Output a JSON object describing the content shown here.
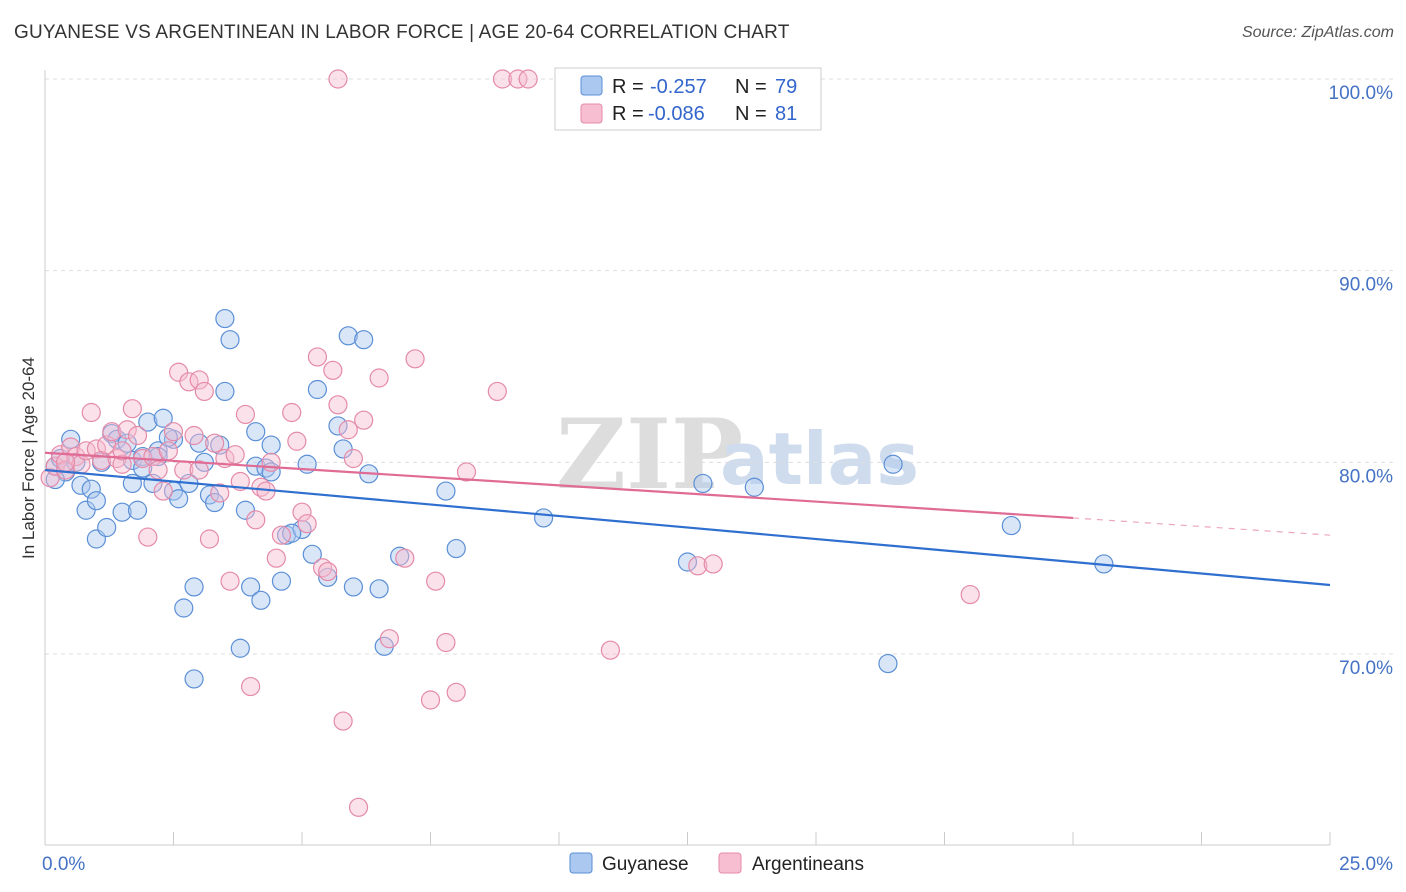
{
  "header": {
    "title": "GUYANESE VS ARGENTINEAN IN LABOR FORCE | AGE 20-64 CORRELATION CHART",
    "source": "Source: ZipAtlas.com"
  },
  "watermark": {
    "zip": "ZIP",
    "atlas": "atlas"
  },
  "colors": {
    "guyanese_fill": "#aac8f0",
    "guyanese_stroke": "#5b8fd6",
    "guyanese_line": "#2f6fcf",
    "argentinean_fill": "#f7bdd0",
    "argentinean_stroke": "#e48aa8",
    "argentinean_line": "#e06b94",
    "axis_text": "#4472c4",
    "grid": "#dddddd"
  },
  "legend": {
    "rows": [
      {
        "r_label": "R =",
        "r_value": "-0.257",
        "n_label": "N =",
        "n_value": "79"
      },
      {
        "r_label": "R =",
        "r_value": "-0.086",
        "n_label": "N =",
        "n_value": "81"
      }
    ]
  },
  "chart_data": {
    "type": "scatter",
    "title": "GUYANESE VS ARGENTINEAN IN LABOR FORCE | AGE 20-64 CORRELATION CHART",
    "xlabel": "",
    "ylabel": "In Labor Force | Age 20-64",
    "xlim": [
      0,
      25
    ],
    "ylim": [
      60,
      101
    ],
    "x_tick_labels": [
      "0.0%",
      "25.0%"
    ],
    "y_ticks": [
      70,
      80,
      90,
      100
    ],
    "y_tick_labels": [
      "70.0%",
      "80.0%",
      "90.0%",
      "100.0%"
    ],
    "series": [
      {
        "name": "Guyanese",
        "r": -0.257,
        "n": 79,
        "trend": {
          "x": [
            0,
            25
          ],
          "y": [
            79.6,
            73.6
          ]
        },
        "points": [
          [
            0.2,
            79.8
          ],
          [
            0.3,
            80.2
          ],
          [
            0.4,
            79.5
          ],
          [
            0.5,
            81.2
          ],
          [
            0.6,
            80.0
          ],
          [
            0.7,
            78.8
          ],
          [
            0.8,
            77.5
          ],
          [
            0.9,
            78.6
          ],
          [
            1.0,
            76.0
          ],
          [
            1.0,
            78.0
          ],
          [
            1.2,
            76.6
          ],
          [
            1.3,
            81.5
          ],
          [
            1.4,
            81.2
          ],
          [
            1.5,
            77.4
          ],
          [
            1.6,
            81.0
          ],
          [
            1.7,
            78.9
          ],
          [
            1.7,
            80.1
          ],
          [
            1.8,
            77.5
          ],
          [
            1.9,
            80.3
          ],
          [
            1.9,
            79.7
          ],
          [
            2.0,
            82.1
          ],
          [
            2.1,
            78.9
          ],
          [
            2.2,
            80.6
          ],
          [
            2.2,
            80.3
          ],
          [
            2.3,
            82.3
          ],
          [
            2.5,
            81.2
          ],
          [
            2.5,
            78.5
          ],
          [
            2.6,
            78.1
          ],
          [
            2.7,
            72.4
          ],
          [
            2.8,
            78.9
          ],
          [
            2.9,
            73.5
          ],
          [
            2.9,
            68.7
          ],
          [
            3.0,
            81.0
          ],
          [
            3.1,
            80.0
          ],
          [
            3.2,
            78.3
          ],
          [
            3.3,
            77.9
          ],
          [
            3.4,
            80.9
          ],
          [
            3.5,
            83.7
          ],
          [
            3.5,
            87.5
          ],
          [
            3.6,
            86.4
          ],
          [
            3.8,
            70.3
          ],
          [
            3.9,
            77.5
          ],
          [
            4.0,
            73.5
          ],
          [
            4.1,
            81.6
          ],
          [
            4.1,
            79.8
          ],
          [
            4.2,
            72.8
          ],
          [
            4.3,
            79.7
          ],
          [
            4.4,
            80.9
          ],
          [
            4.4,
            79.5
          ],
          [
            4.6,
            73.8
          ],
          [
            4.7,
            76.2
          ],
          [
            5.0,
            76.5
          ],
          [
            5.1,
            79.9
          ],
          [
            5.2,
            75.2
          ],
          [
            5.3,
            83.8
          ],
          [
            5.5,
            74.0
          ],
          [
            5.7,
            81.9
          ],
          [
            5.8,
            80.7
          ],
          [
            5.9,
            86.6
          ],
          [
            6.0,
            73.5
          ],
          [
            6.2,
            86.4
          ],
          [
            6.3,
            79.4
          ],
          [
            6.5,
            73.4
          ],
          [
            6.6,
            70.4
          ],
          [
            6.9,
            75.1
          ],
          [
            7.8,
            78.5
          ],
          [
            8.0,
            75.5
          ],
          [
            9.7,
            77.1
          ],
          [
            12.5,
            74.8
          ],
          [
            12.8,
            78.9
          ],
          [
            13.8,
            78.7
          ],
          [
            16.4,
            69.5
          ],
          [
            16.5,
            79.9
          ],
          [
            18.8,
            76.7
          ],
          [
            20.6,
            74.7
          ],
          [
            0.2,
            79.1
          ],
          [
            1.1,
            80.0
          ],
          [
            2.4,
            81.3
          ],
          [
            4.8,
            76.3
          ]
        ]
      },
      {
        "name": "Argentineans",
        "r": -0.086,
        "n": 81,
        "trend": {
          "x": [
            0,
            20
          ],
          "y": [
            80.5,
            77.1
          ]
        },
        "trend_dashed": {
          "x": [
            20,
            25
          ],
          "y": [
            77.1,
            76.2
          ]
        },
        "points": [
          [
            0.1,
            79.2
          ],
          [
            0.2,
            79.8
          ],
          [
            0.3,
            80.4
          ],
          [
            0.4,
            79.6
          ],
          [
            0.5,
            80.8
          ],
          [
            0.6,
            80.3
          ],
          [
            0.7,
            79.9
          ],
          [
            0.8,
            80.6
          ],
          [
            0.9,
            82.6
          ],
          [
            1.0,
            80.7
          ],
          [
            1.1,
            80.1
          ],
          [
            1.2,
            80.9
          ],
          [
            1.3,
            81.6
          ],
          [
            1.4,
            80.2
          ],
          [
            1.5,
            79.9
          ],
          [
            1.6,
            81.7
          ],
          [
            1.7,
            82.8
          ],
          [
            1.8,
            81.4
          ],
          [
            1.9,
            80.2
          ],
          [
            2.0,
            76.1
          ],
          [
            2.1,
            80.3
          ],
          [
            2.2,
            79.6
          ],
          [
            2.3,
            78.5
          ],
          [
            2.4,
            80.6
          ],
          [
            2.5,
            81.6
          ],
          [
            2.6,
            84.7
          ],
          [
            2.7,
            79.6
          ],
          [
            2.8,
            84.2
          ],
          [
            2.9,
            81.4
          ],
          [
            3.0,
            84.3
          ],
          [
            3.1,
            83.7
          ],
          [
            3.2,
            76.0
          ],
          [
            3.3,
            81.0
          ],
          [
            3.4,
            78.4
          ],
          [
            3.5,
            80.2
          ],
          [
            3.6,
            73.8
          ],
          [
            3.7,
            80.4
          ],
          [
            3.8,
            79.0
          ],
          [
            3.9,
            82.5
          ],
          [
            4.0,
            68.3
          ],
          [
            4.1,
            77.0
          ],
          [
            4.2,
            78.7
          ],
          [
            4.3,
            78.5
          ],
          [
            4.4,
            80.0
          ],
          [
            4.5,
            75.0
          ],
          [
            4.6,
            76.2
          ],
          [
            4.8,
            82.6
          ],
          [
            4.9,
            81.1
          ],
          [
            5.0,
            77.4
          ],
          [
            5.1,
            76.8
          ],
          [
            5.3,
            85.5
          ],
          [
            5.4,
            74.5
          ],
          [
            5.5,
            74.3
          ],
          [
            5.6,
            84.8
          ],
          [
            5.7,
            83.0
          ],
          [
            5.8,
            66.5
          ],
          [
            5.9,
            81.7
          ],
          [
            6.0,
            80.2
          ],
          [
            6.1,
            62.0
          ],
          [
            6.2,
            82.2
          ],
          [
            6.5,
            84.4
          ],
          [
            6.7,
            70.8
          ],
          [
            7.0,
            75.0
          ],
          [
            7.2,
            85.4
          ],
          [
            7.5,
            67.6
          ],
          [
            7.6,
            73.8
          ],
          [
            7.8,
            70.6
          ],
          [
            8.0,
            68.0
          ],
          [
            8.2,
            79.5
          ],
          [
            8.8,
            83.7
          ],
          [
            8.9,
            100.0
          ],
          [
            9.2,
            100.0
          ],
          [
            9.4,
            100.0
          ],
          [
            5.7,
            100.0
          ],
          [
            11.0,
            70.2
          ],
          [
            12.7,
            74.6
          ],
          [
            13.0,
            74.7
          ],
          [
            18.0,
            73.1
          ],
          [
            1.5,
            80.6
          ],
          [
            3.0,
            79.6
          ],
          [
            0.4,
            80.0
          ]
        ]
      }
    ]
  },
  "bottom_legend": {
    "items": [
      "Guyanese",
      "Argentineans"
    ]
  }
}
